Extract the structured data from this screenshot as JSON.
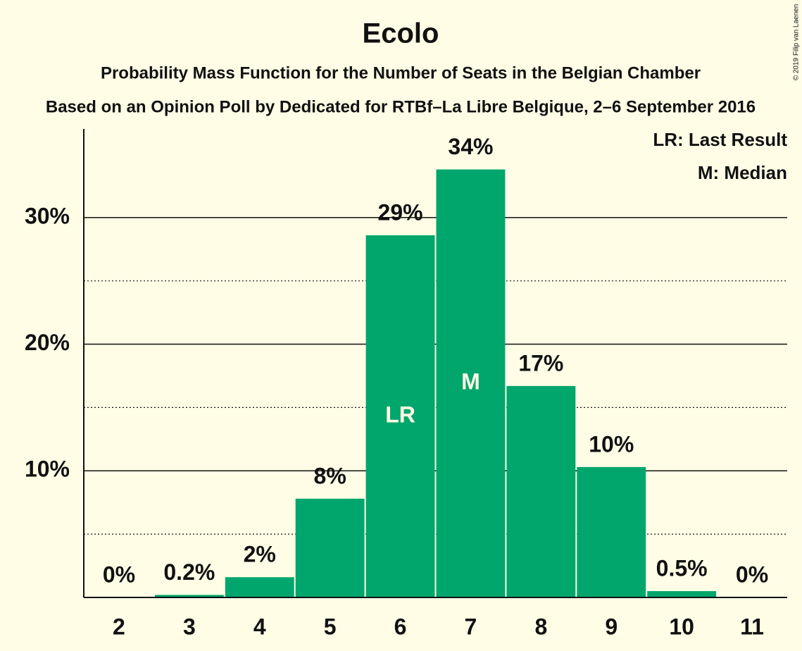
{
  "chart_data": {
    "type": "bar",
    "title": "Ecolo",
    "subtitle": "Probability Mass Function for the Number of Seats in the Belgian Chamber",
    "subtitle2": "Based on an Opinion Poll by Dedicated for RTBf–La Libre Belgique, 2–6 September 2016",
    "copyright": "© 2019 Filip van Laenen",
    "legend": [
      "LR: Last Result",
      "M: Median"
    ],
    "categories": [
      "2",
      "3",
      "4",
      "5",
      "6",
      "7",
      "8",
      "9",
      "10",
      "11"
    ],
    "values": [
      0,
      0.2,
      1.6,
      7.8,
      28.6,
      33.8,
      16.7,
      10.3,
      0.5,
      0
    ],
    "value_labels": [
      "0%",
      "0.2%",
      "2%",
      "8%",
      "29%",
      "34%",
      "17%",
      "10%",
      "0.5%",
      "0%"
    ],
    "annotations": [
      {
        "text": "LR",
        "category": "6"
      },
      {
        "text": "M",
        "category": "7"
      }
    ],
    "color": "#00a66b",
    "ylim": [
      0,
      37
    ],
    "yticks": [
      {
        "value": 10,
        "label": "10%"
      },
      {
        "value": 20,
        "label": "20%"
      },
      {
        "value": 30,
        "label": "30%"
      }
    ],
    "minor_yticks": [
      5,
      15,
      25
    ],
    "grid": true
  }
}
